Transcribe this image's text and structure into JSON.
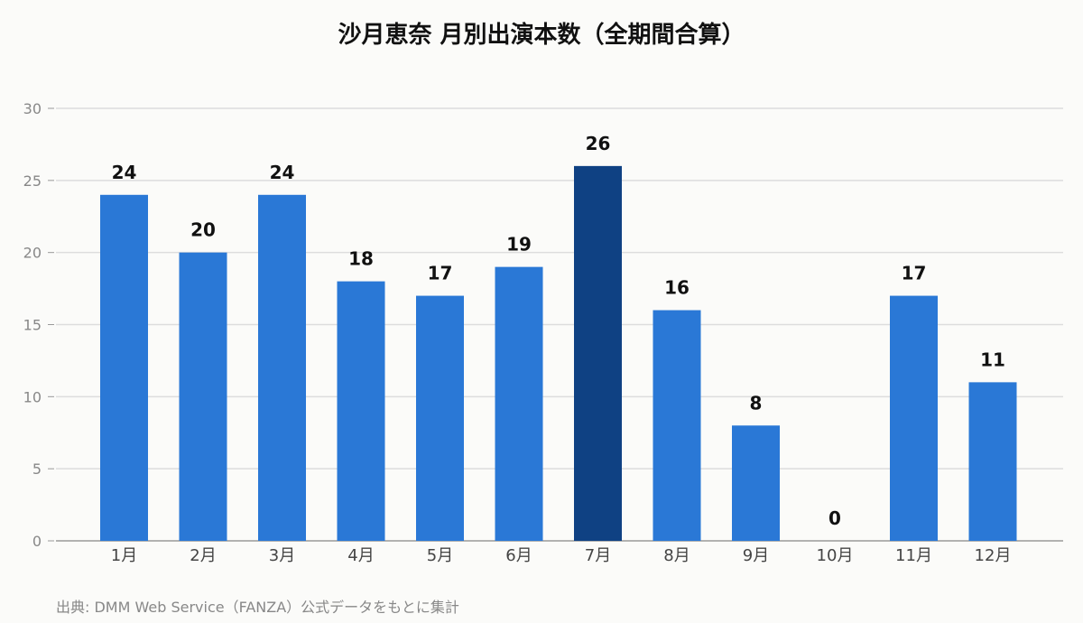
{
  "chart_data": {
    "type": "bar",
    "title": "沙月恵奈 月別出演本数（全期間合算）",
    "categories": [
      "1月",
      "2月",
      "3月",
      "4月",
      "5月",
      "6月",
      "7月",
      "8月",
      "9月",
      "10月",
      "11月",
      "12月"
    ],
    "values": [
      24,
      20,
      24,
      18,
      17,
      19,
      26,
      16,
      8,
      0,
      17,
      11
    ],
    "highlight_category": "7月",
    "ylim": [
      0,
      30
    ],
    "yticks": [
      0,
      5,
      10,
      15,
      20,
      25,
      30
    ],
    "grid": true,
    "legend": "none",
    "xlabel": "",
    "ylabel": "",
    "colors": {
      "bar": "#2a78d6",
      "highlight": "#0f4183",
      "grid": "#dddddd",
      "axis": "#999999"
    }
  },
  "source_note": "出典: DMM Web Service（FANZA）公式データをもとに集計"
}
